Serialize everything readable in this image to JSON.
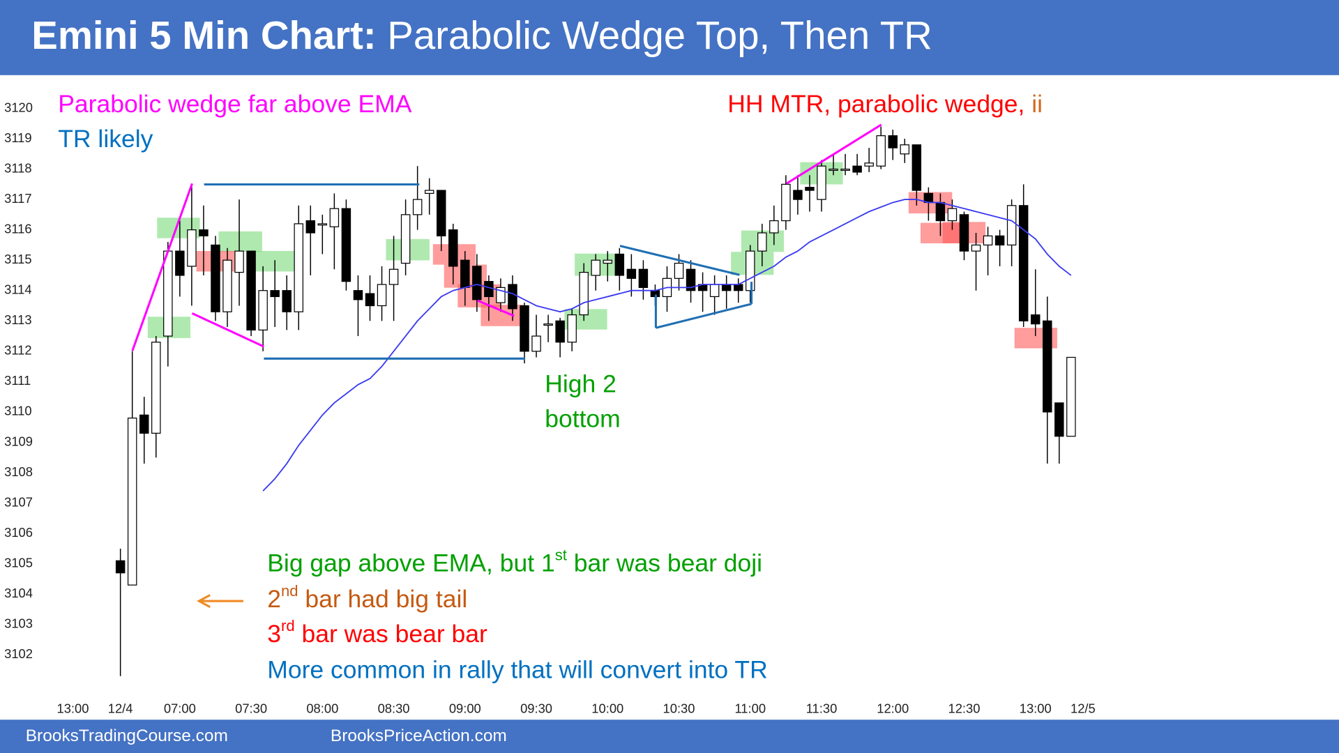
{
  "header": {
    "title_bold": "Emini 5 Min Chart:",
    "title_rest": "Parabolic Wedge Top, Then TR"
  },
  "footer": {
    "left": "BrooksTradingCourse.com",
    "right": "BrooksPriceAction.com"
  },
  "chart_data": {
    "type": "candlestick",
    "up_color": "#ffffff",
    "down_color": "#000000",
    "open": [
      3105.1,
      3104.3,
      3109.9,
      3109.3,
      3112.5,
      3115.3,
      3114.8,
      3116,
      3115.5,
      3113.3,
      3114.6,
      3115.3,
      3112.7,
      3114,
      3114,
      3113.3,
      3116.3,
      3116.2,
      3116.1,
      3116.7,
      3114,
      3113.9,
      3113.5,
      3114.2,
      3114.9,
      3116.5,
      3117.2,
      3117.3,
      3116,
      3115,
      3114.8,
      3114.3,
      3113.6,
      3114.2,
      3113.5,
      3112,
      3112.9,
      3113,
      3112.3,
      3113.2,
      3114.5,
      3114.9,
      3115.2,
      3114.7,
      3114.7,
      3114,
      3113.8,
      3114.4,
      3114.7,
      3114.2,
      3113.8,
      3114.2,
      3114.2,
      3114,
      3115.3,
      3115.9,
      3116.3,
      3117.3,
      3117.4,
      3117,
      3118,
      3118,
      3118.1,
      3118.1,
      3118.1,
      3119.1,
      3118.5,
      3118.8,
      3117.2,
      3116.9,
      3116.3,
      3116.5,
      3115.3,
      3115.5,
      3115.8,
      3115.5,
      3116.8,
      3113.2,
      3113,
      3110.3,
      3109.2
    ],
    "high": [
      3105.5,
      3112,
      3110.5,
      3112.5,
      3115.6,
      3116.3,
      3117.5,
      3116.8,
      3115.8,
      3115.4,
      3117,
      3115.3,
      3114.8,
      3115,
      3114.5,
      3116.8,
      3116.8,
      3116.5,
      3117.2,
      3117,
      3114.5,
      3114.5,
      3114.8,
      3115.8,
      3117,
      3118.1,
      3117.7,
      3117.3,
      3116.2,
      3115.3,
      3115.2,
      3114.5,
      3114.4,
      3114.5,
      3113.6,
      3113.2,
      3113.2,
      3113.1,
      3113.4,
      3114.9,
      3115.2,
      3115.3,
      3115.4,
      3115.2,
      3115,
      3114.2,
      3114.8,
      3115.2,
      3115,
      3114.6,
      3114.5,
      3114.5,
      3114.4,
      3115.5,
      3116.2,
      3116.8,
      3117.8,
      3117.8,
      3117.8,
      3118.3,
      3118.5,
      3118.5,
      3118.5,
      3118.7,
      3119.4,
      3119.3,
      3119,
      3118.8,
      3117.4,
      3117.2,
      3117,
      3116.6,
      3115.9,
      3116.1,
      3116,
      3117,
      3117.5,
      3114.7,
      3113.8,
      3110.3,
      3111.8
    ],
    "low": [
      3101.3,
      3104.3,
      3108.3,
      3108.5,
      3111.5,
      3113.8,
      3113.5,
      3114.5,
      3113,
      3112.8,
      3113.5,
      3112.5,
      3112,
      3112.8,
      3112.7,
      3112.7,
      3114.5,
      3115.2,
      3114.7,
      3114,
      3112.5,
      3113,
      3113,
      3113,
      3114.5,
      3116,
      3116.5,
      3115.3,
      3114.2,
      3113.5,
      3113.3,
      3113,
      3113.3,
      3113,
      3111.6,
      3111.8,
      3112.3,
      3111.8,
      3112,
      3113,
      3114,
      3114.3,
      3114,
      3113.8,
      3113.7,
      3113.5,
      3113.3,
      3114,
      3113.6,
      3113.3,
      3113.2,
      3113.4,
      3113.6,
      3113.6,
      3114.8,
      3115.5,
      3116,
      3116.5,
      3116.6,
      3116.6,
      3117.8,
      3117.8,
      3117.8,
      3117.9,
      3118,
      3118.3,
      3118.2,
      3116.8,
      3116.3,
      3115.8,
      3116,
      3115,
      3114,
      3114.5,
      3114.8,
      3114.8,
      3112.8,
      3112.5,
      3108.3,
      3108.3,
      3109.2
    ],
    "close": [
      3104.7,
      3109.8,
      3109.3,
      3112.3,
      3115.3,
      3114.5,
      3116,
      3115.8,
      3113.3,
      3115,
      3115.3,
      3112.7,
      3114,
      3113.8,
      3113.3,
      3116.2,
      3115.9,
      3116.2,
      3116.7,
      3114.3,
      3113.7,
      3113.5,
      3114.2,
      3114.7,
      3116.5,
      3117,
      3117.3,
      3115.8,
      3114.8,
      3114.1,
      3113.7,
      3113.8,
      3114.1,
      3113.4,
      3112,
      3112.5,
      3112.9,
      3112.3,
      3113.2,
      3114.6,
      3115,
      3115,
      3114.5,
      3114.4,
      3114.1,
      3113.8,
      3114.4,
      3114.9,
      3114,
      3114,
      3114.2,
      3114,
      3114,
      3115.3,
      3115.9,
      3116.3,
      3117.5,
      3117,
      3117.3,
      3118.1,
      3118,
      3118,
      3117.9,
      3118.2,
      3119.1,
      3118.7,
      3118.8,
      3117.3,
      3116.9,
      3116.3,
      3116.7,
      3115.3,
      3115.5,
      3115.8,
      3115.5,
      3116.8,
      3113,
      3112.9,
      3110,
      3109.2,
      3111.8
    ],
    "ema": {
      "color": "#3a3af0",
      "values": [
        null,
        null,
        null,
        null,
        null,
        null,
        null,
        null,
        null,
        null,
        null,
        null,
        3107.4,
        3107.8,
        3108.3,
        3108.9,
        3109.4,
        3109.9,
        3110.3,
        3110.6,
        3110.9,
        3111.1,
        3111.5,
        3112.0,
        3112.5,
        3113.0,
        3113.4,
        3113.8,
        3114.0,
        3114.1,
        3114.2,
        3114.1,
        3114.0,
        3113.9,
        3113.7,
        3113.5,
        3113.4,
        3113.3,
        3113.4,
        3113.6,
        3113.7,
        3113.8,
        3113.9,
        3114.0,
        3114.0,
        3114.0,
        3114.1,
        3114.1,
        3114.1,
        3114.2,
        3114.2,
        3114.2,
        3114.2,
        3114.4,
        3114.6,
        3114.8,
        3115.1,
        3115.3,
        3115.6,
        3115.8,
        3116.0,
        3116.2,
        3116.4,
        3116.6,
        3116.75,
        3116.9,
        3117.0,
        3117.0,
        3116.9,
        3116.9,
        3116.8,
        3116.7,
        3116.6,
        3116.5,
        3116.4,
        3116.3,
        3116.0,
        3115.7,
        3115.2,
        3114.8,
        3114.5
      ]
    },
    "xlim": [
      -6,
      82
    ],
    "xticks": [
      {
        "value": -4,
        "label": "13:00"
      },
      {
        "value": 0,
        "label": "12/4"
      },
      {
        "value": 5,
        "label": "07:00"
      },
      {
        "value": 11,
        "label": "07:30"
      },
      {
        "value": 17,
        "label": "08:00"
      },
      {
        "value": 23,
        "label": "08:30"
      },
      {
        "value": 29,
        "label": "09:00"
      },
      {
        "value": 35,
        "label": "09:30"
      },
      {
        "value": 41,
        "label": "10:00"
      },
      {
        "value": 47,
        "label": "10:30"
      },
      {
        "value": 53,
        "label": "11:00"
      },
      {
        "value": 59,
        "label": "11:30"
      },
      {
        "value": 65,
        "label": "12:00"
      },
      {
        "value": 71,
        "label": "12:30"
      },
      {
        "value": 77,
        "label": "13:00"
      },
      {
        "value": 81,
        "label": "12/5"
      }
    ],
    "ylim": [
      3101,
      3121
    ],
    "yticks": [
      3102,
      3103,
      3104,
      3105,
      3106,
      3107,
      3108,
      3109,
      3110,
      3111,
      3112,
      3113,
      3114,
      3115,
      3116,
      3117,
      3118,
      3119,
      3120
    ],
    "grid": false,
    "annotations": [
      [
        {
          "text": "Parabolic wedge far above EMA",
          "color": "#ff00ff"
        }
      ],
      [
        {
          "text": "TR likely",
          "color": "#0070c0"
        }
      ],
      [
        {
          "text": "HH MTR, parabolic wedge, ",
          "color": "#ff0000"
        },
        {
          "text": "ii",
          "color": "#d2691e"
        }
      ],
      [
        {
          "text": "High 2",
          "color": "#00a000"
        }
      ],
      [
        {
          "text": "bottom",
          "color": "#00a000"
        }
      ],
      [
        {
          "text": "Big gap above EMA, but 1",
          "color": "#00a000"
        },
        {
          "text": "st",
          "color": "#00a000",
          "sup": true
        },
        {
          "text": " bar was bear doji",
          "color": "#00a000"
        }
      ],
      [
        {
          "text": "2",
          "color": "#c55a11"
        },
        {
          "text": "nd",
          "color": "#c55a11",
          "sup": true
        },
        {
          "text": " bar had big tail",
          "color": "#c55a11"
        }
      ],
      [
        {
          "text": "3",
          "color": "#ff0000"
        },
        {
          "text": "rd",
          "color": "#ff0000",
          "sup": true
        },
        {
          "text": " bar was bear bar",
          "color": "#ff0000"
        }
      ],
      [
        {
          "text": "More common in rally that will convert into TR",
          "color": "#0070c0"
        }
      ]
    ]
  }
}
